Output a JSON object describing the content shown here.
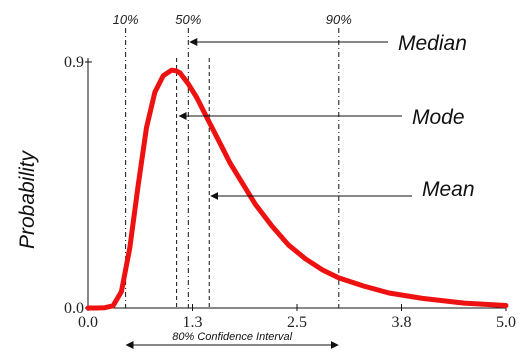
{
  "chart_data": {
    "type": "line",
    "title": "",
    "xlabel": "",
    "ylabel": "Probability",
    "xlim": [
      0.0,
      5.0
    ],
    "ylim": [
      0.0,
      0.9
    ],
    "x_tick_labels": [
      "0.0",
      "1.3",
      "2.5",
      "3.8",
      "5.0"
    ],
    "x_tick_values": [
      0.0,
      1.25,
      2.5,
      3.75,
      5.0
    ],
    "y_tick_labels": [
      "0.9",
      "0.0"
    ],
    "y_tick_values": [
      0.9,
      0.0
    ],
    "grid": false,
    "legend": "none",
    "series": [
      {
        "color": "#ee1111",
        "x": [
          0.0,
          0.1,
          0.2,
          0.3,
          0.4,
          0.5,
          0.6,
          0.7,
          0.8,
          0.9,
          1.0,
          1.05,
          1.1,
          1.2,
          1.3,
          1.4,
          1.5,
          1.6,
          1.7,
          1.8,
          2.0,
          2.2,
          2.4,
          2.6,
          2.8,
          3.0,
          3.3,
          3.6,
          4.0,
          4.5,
          5.0
        ],
        "y": [
          0.0,
          0.0,
          0.001,
          0.008,
          0.06,
          0.22,
          0.45,
          0.66,
          0.79,
          0.85,
          0.87,
          0.868,
          0.86,
          0.82,
          0.77,
          0.71,
          0.65,
          0.59,
          0.53,
          0.48,
          0.38,
          0.3,
          0.23,
          0.18,
          0.14,
          0.11,
          0.08,
          0.055,
          0.035,
          0.018,
          0.009
        ]
      }
    ],
    "markers": [
      {
        "name": "10%",
        "x": 0.45
      },
      {
        "name": "50%",
        "x": 1.2
      },
      {
        "name": "90%",
        "x": 3.0
      },
      {
        "name": "mode",
        "x": 1.06
      },
      {
        "name": "mean",
        "x": 1.45
      }
    ],
    "annotations": {
      "median": "Median",
      "mode": "Mode",
      "mean": "Mean",
      "interval": "80% Confidence Interval"
    }
  }
}
